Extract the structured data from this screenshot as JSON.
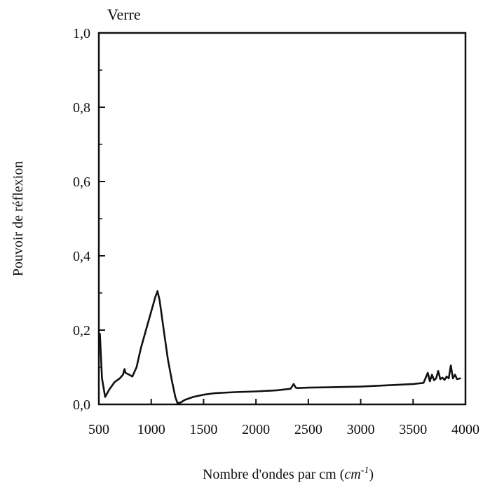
{
  "chart_data": {
    "type": "line",
    "title": "Verre",
    "xlabel": "Nombre d'ondes par cm",
    "xlabel_unit_base": "cm",
    "xlabel_unit_exponent": "-1",
    "xlabel_open": "(",
    "xlabel_close": ")",
    "ylabel": "Pouvoir de réflexion",
    "xlim": [
      500,
      4000
    ],
    "ylim": [
      0,
      1.0
    ],
    "x_ticks": [
      500,
      1000,
      1500,
      2000,
      2500,
      3000,
      3500,
      4000
    ],
    "x_tick_labels": [
      "500",
      "1000",
      "1500",
      "2000",
      "2500",
      "3000",
      "3500",
      "4000"
    ],
    "y_ticks": [
      0,
      0.2,
      0.4,
      0.6,
      0.8,
      1.0
    ],
    "y_tick_labels": [
      "0,0",
      "0,2",
      "0,4",
      "0,6",
      "0,8",
      "1,0"
    ],
    "grid": false,
    "series": [
      {
        "color": "#111111",
        "x": [
          510,
          530,
          560,
          600,
          650,
          700,
          730,
          745,
          755,
          790,
          820,
          860,
          900,
          950,
          1000,
          1040,
          1060,
          1080,
          1120,
          1160,
          1200,
          1230,
          1250,
          1280,
          1320,
          1400,
          1500,
          1600,
          1800,
          2000,
          2200,
          2330,
          2360,
          2380,
          2400,
          2500,
          2700,
          3000,
          3300,
          3500,
          3600,
          3640,
          3660,
          3680,
          3700,
          3720,
          3740,
          3760,
          3780,
          3800,
          3820,
          3840,
          3860,
          3880,
          3900,
          3920,
          3950
        ],
        "y": [
          0.19,
          0.07,
          0.02,
          0.04,
          0.06,
          0.07,
          0.08,
          0.095,
          0.085,
          0.08,
          0.075,
          0.1,
          0.15,
          0.2,
          0.25,
          0.29,
          0.305,
          0.28,
          0.2,
          0.12,
          0.06,
          0.02,
          0.004,
          0.005,
          0.012,
          0.02,
          0.026,
          0.03,
          0.033,
          0.035,
          0.038,
          0.042,
          0.055,
          0.045,
          0.044,
          0.045,
          0.046,
          0.048,
          0.052,
          0.055,
          0.058,
          0.085,
          0.062,
          0.08,
          0.065,
          0.07,
          0.09,
          0.068,
          0.072,
          0.066,
          0.075,
          0.07,
          0.105,
          0.07,
          0.08,
          0.068,
          0.07
        ]
      }
    ]
  }
}
